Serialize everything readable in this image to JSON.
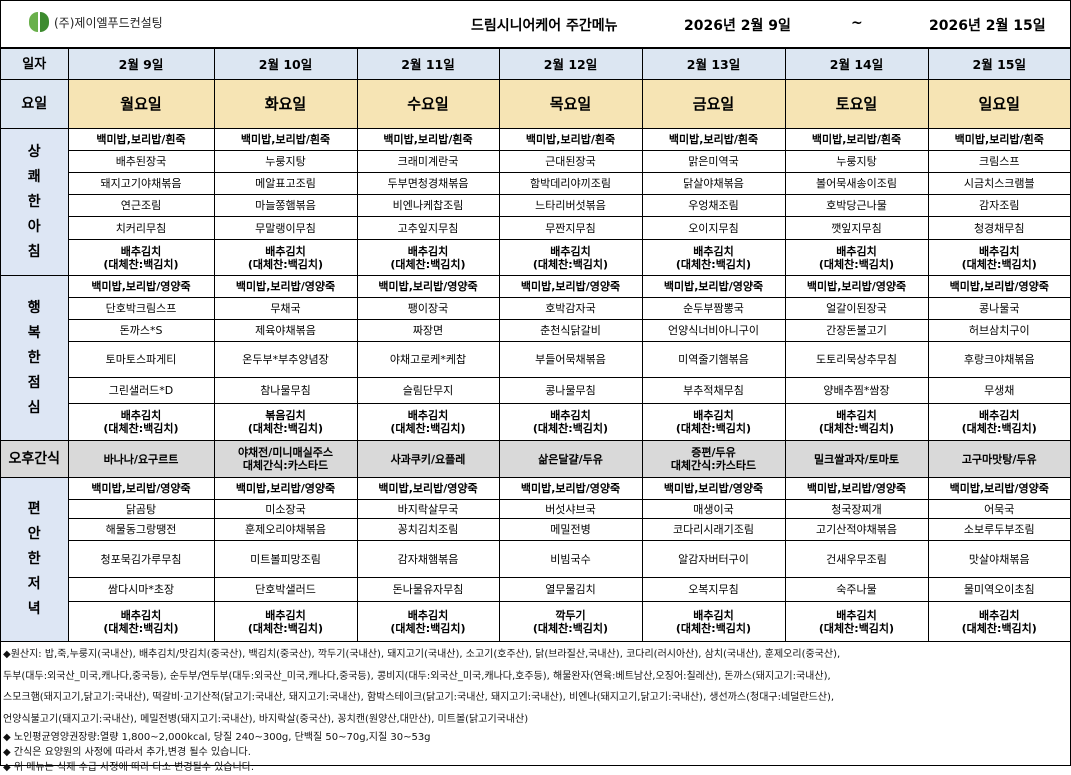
{
  "header": {
    "company": "(주)제이엘푸드컨설팅",
    "title": "드림시니어케어 주간메뉴",
    "date_from": "2026년 2월 9일",
    "tilde": "~",
    "date_to": "2026년 2월 15일",
    "logo_color": "#3d8b2f"
  },
  "row_labels": {
    "date": "일자",
    "day": "요일",
    "snack": "오후간식"
  },
  "dates": [
    "2월 9일",
    "2월 10일",
    "2월 11일",
    "2월 12일",
    "2월 13일",
    "2월 14일",
    "2월 15일"
  ],
  "days": [
    "월요일",
    "화요일",
    "수요일",
    "목요일",
    "금요일",
    "토요일",
    "일요일"
  ],
  "meals": [
    {
      "label": "상쾌한아침",
      "rows": [
        [
          "백미밥,보리밥/흰죽",
          "백미밥,보리밥/흰죽",
          "백미밥,보리밥/흰죽",
          "백미밥,보리밥/흰죽",
          "백미밥,보리밥/흰죽",
          "백미밥,보리밥/흰죽",
          "백미밥,보리밥/흰죽"
        ],
        [
          "배추된장국",
          "누룽지탕",
          "크래미계란국",
          "근대된장국",
          "맑은미역국",
          "누룽지탕",
          "크림스프"
        ],
        [
          "돼지고기야채볶음",
          "메알표고조림",
          "두부면청경채볶음",
          "함박데리야끼조림",
          "닭살야채볶음",
          "볼어묵새송이조림",
          "시금치스크램블"
        ],
        [
          "연근조림",
          "마늘쫑햄볶음",
          "비엔나케찹조림",
          "느타리버섯볶음",
          "우엉채조림",
          "호박당근나물",
          "감자조림"
        ],
        [
          "치커리무침",
          "무말랭이무침",
          "고추잎지무침",
          "무짠지무침",
          "오이지무침",
          "깻잎지무침",
          "청경채무침"
        ],
        [
          "배추김치\n(대체찬:백김치)",
          "배추김치\n(대체찬:백김치)",
          "배추김치\n(대체찬:백김치)",
          "배추김치\n(대체찬:백김치)",
          "배추김치\n(대체찬:백김치)",
          "배추김치\n(대체찬:백김치)",
          "배추김치\n(대체찬:백김치)"
        ]
      ]
    },
    {
      "label": "행복한점심",
      "rows": [
        [
          "백미밥,보리밥/영양죽",
          "백미밥,보리밥/영양죽",
          "백미밥,보리밥/영양죽",
          "백미밥,보리밥/영양죽",
          "백미밥,보리밥/영양죽",
          "백미밥,보리밥/영양죽",
          "백미밥,보리밥/영양죽"
        ],
        [
          "단호박크림스프",
          "무채국",
          "팽이장국",
          "호박감자국",
          "순두부짬뽕국",
          "얼갈이된장국",
          "콩나물국"
        ],
        [
          "돈까스*S",
          "제육야채볶음",
          "짜장면",
          "춘천식닭갈비",
          "언양식너비아니구이",
          "간장돈불고기",
          "허브삼치구이"
        ],
        [
          "토마토스파게티",
          "온두부*부추양념장",
          "야채고로케*케찹",
          "부들어묵채볶음",
          "미역줄기햄볶음",
          "도토리묵상추무침",
          "후랑크야채볶음"
        ],
        [
          "그린샐러드*D",
          "참나물무침",
          "슬림단무지",
          "콩나물무침",
          "부추적채무침",
          "양배추찜*쌈장",
          "무생채"
        ],
        [
          "배추김치\n(대체찬:백김치)",
          "볶음김치\n(대체찬:백김치)",
          "배추김치\n(대체찬:백김치)",
          "배추김치\n(대체찬:백김치)",
          "배추김치\n(대체찬:백김치)",
          "배추김치\n(대체찬:백김치)",
          "배추김치\n(대체찬:백김치)"
        ]
      ]
    },
    {
      "label": "편안한저녁",
      "rows": [
        [
          "백미밥,보리밥/영양죽",
          "백미밥,보리밥/영양죽",
          "백미밥,보리밥/영양죽",
          "백미밥,보리밥/영양죽",
          "백미밥,보리밥/영양죽",
          "백미밥,보리밥/영양죽",
          "백미밥,보리밥/영양죽"
        ],
        [
          "닭곰탕",
          "미소장국",
          "바지락살무국",
          "버섯샤브국",
          "매생이국",
          "청국장찌개",
          "어묵국"
        ],
        [
          "해물동그랑땡전",
          "훈제오리야채볶음",
          "꽁치김치조림",
          "메밀전병",
          "코다리시래기조림",
          "고기산적야채볶음",
          "소보루두부조림"
        ],
        [
          "청포묵김가루무침",
          "미트볼피망조림",
          "감자채햄볶음",
          "비빔국수",
          "알감자버터구이",
          "건새우무조림",
          "맛살야채볶음"
        ],
        [
          "쌈다시마*초장",
          "단호박샐러드",
          "돈나물유자무침",
          "열무물김치",
          "오복지무침",
          "숙주나물",
          "물미역오이초침"
        ],
        [
          "배추김치\n(대체찬:백김치)",
          "배추김치\n(대체찬:백김치)",
          "배추김치\n(대체찬:백김치)",
          "깍두기\n(대체찬:백김치)",
          "배추김치\n(대체찬:백김치)",
          "배추김치\n(대체찬:백김치)",
          "배추김치\n(대체찬:백김치)"
        ]
      ]
    }
  ],
  "snacks": [
    "바나나/요구르트",
    "야채전/미니매실주스\n대체간식:카스타드",
    "사과쿠키/요플레",
    "삶은달걀/두유",
    "증편/두유\n대체간식:카스타드",
    "밀크쌀과자/토마토",
    "고구마맛탕/두유"
  ],
  "footer": {
    "origin_lines": [
      "◆원산지:  밥,죽,누룽지(국내산), 배추김치/맛김치(중국산), 백김치(중국산), 깍두기(국내산), 돼지고기(국내산), 소고기(호주산), 닭(브라질산,국내산), 코다리(러시아산), 삼치(국내산), 훈제오리(중국산),",
      "두부(대두:외국산_미국,캐나다,중국등), 순두부/연두부(대두:외국산_미국,캐나다,중국등), 콩비지(대두:외국산_미국,캐나다,호주등), 해물완자(연육:베트남산,오징어:칠레산), 돈까스(돼지고기:국내산),",
      "스모크햄(돼지고기,닭고기:국내산), 떡갈비·고기산적(닭고기:국내산, 돼지고기:국내산), 함박스테이크(닭고기:국내산, 돼지고기:국내산), 비엔나(돼지고기,닭고기:국내산), 생선까스(청대구:네덜란드산),",
      "언양식불고기(돼지고기:국내산), 메밀전병(돼지고기:국내산), 바지락살(중국산), 꽁치캔(원양산,대만산), 미트볼(닭고기국내산)"
    ],
    "notes": [
      "◆ 노인평균영양권장량:열량 1,800~2,000kcal, 당질 240~300g, 단백질 50~70g,지질 30~53g",
      "◆ 간식은 요양원의 사정에 따라서 추가,변경 될수 있습니다.",
      "◆ 위 메뉴는 식재 수급 사정에 따라 다소 변경될수 있습니다."
    ]
  }
}
